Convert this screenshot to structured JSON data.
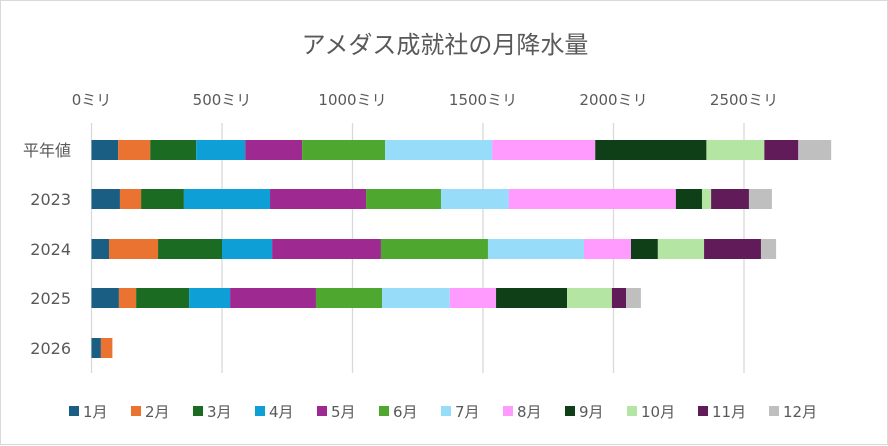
{
  "chart_data": {
    "type": "bar",
    "orientation": "horizontal",
    "stacked": true,
    "title": "アメダス成就社の月降水量",
    "xlabel": "",
    "ylabel": "",
    "xlim": [
      0,
      3000
    ],
    "x_ticks": [
      0,
      500,
      1000,
      1500,
      2000,
      2500
    ],
    "x_tick_labels": [
      "0ミリ",
      "500ミリ",
      "1000ミリ",
      "1500ミリ",
      "2000ミリ",
      "2500ミリ"
    ],
    "x_axis_position": "top",
    "grid": true,
    "legend_position": "bottom",
    "categories": [
      "平年値",
      "2023",
      "2024",
      "2025",
      "2026"
    ],
    "series": [
      {
        "name": "1月",
        "color": "#1A5E84",
        "values": [
          102,
          109,
          67,
          105,
          36
        ]
      },
      {
        "name": "2月",
        "color": "#EB7332",
        "values": [
          123,
          81,
          188,
          66,
          44
        ]
      },
      {
        "name": "3月",
        "color": "#1B6B23",
        "values": [
          176,
          164,
          245,
          203,
          null
        ]
      },
      {
        "name": "4月",
        "color": "#0F9FD7",
        "values": [
          188,
          330,
          192,
          157,
          null
        ]
      },
      {
        "name": "5月",
        "color": "#9E2A91",
        "values": [
          218,
          368,
          417,
          329,
          null
        ]
      },
      {
        "name": "6月",
        "color": "#4EA72E",
        "values": [
          318,
          287,
          410,
          253,
          null
        ]
      },
      {
        "name": "7月",
        "color": "#97DCF8",
        "values": [
          410,
          259,
          368,
          260,
          null
        ]
      },
      {
        "name": "8月",
        "color": "#FF9AFF",
        "values": [
          395,
          641,
          180,
          177,
          null
        ]
      },
      {
        "name": "9月",
        "color": "#0F3F17",
        "values": [
          426,
          100,
          103,
          272,
          null
        ]
      },
      {
        "name": "10月",
        "color": "#B5E5A2",
        "values": [
          222,
          35,
          177,
          172,
          null
        ]
      },
      {
        "name": "11月",
        "color": "#601B58",
        "values": [
          130,
          145,
          218,
          54,
          null
        ]
      },
      {
        "name": "12月",
        "color": "#BFBFBF",
        "values": [
          126,
          88,
          58,
          57,
          null
        ]
      }
    ]
  }
}
